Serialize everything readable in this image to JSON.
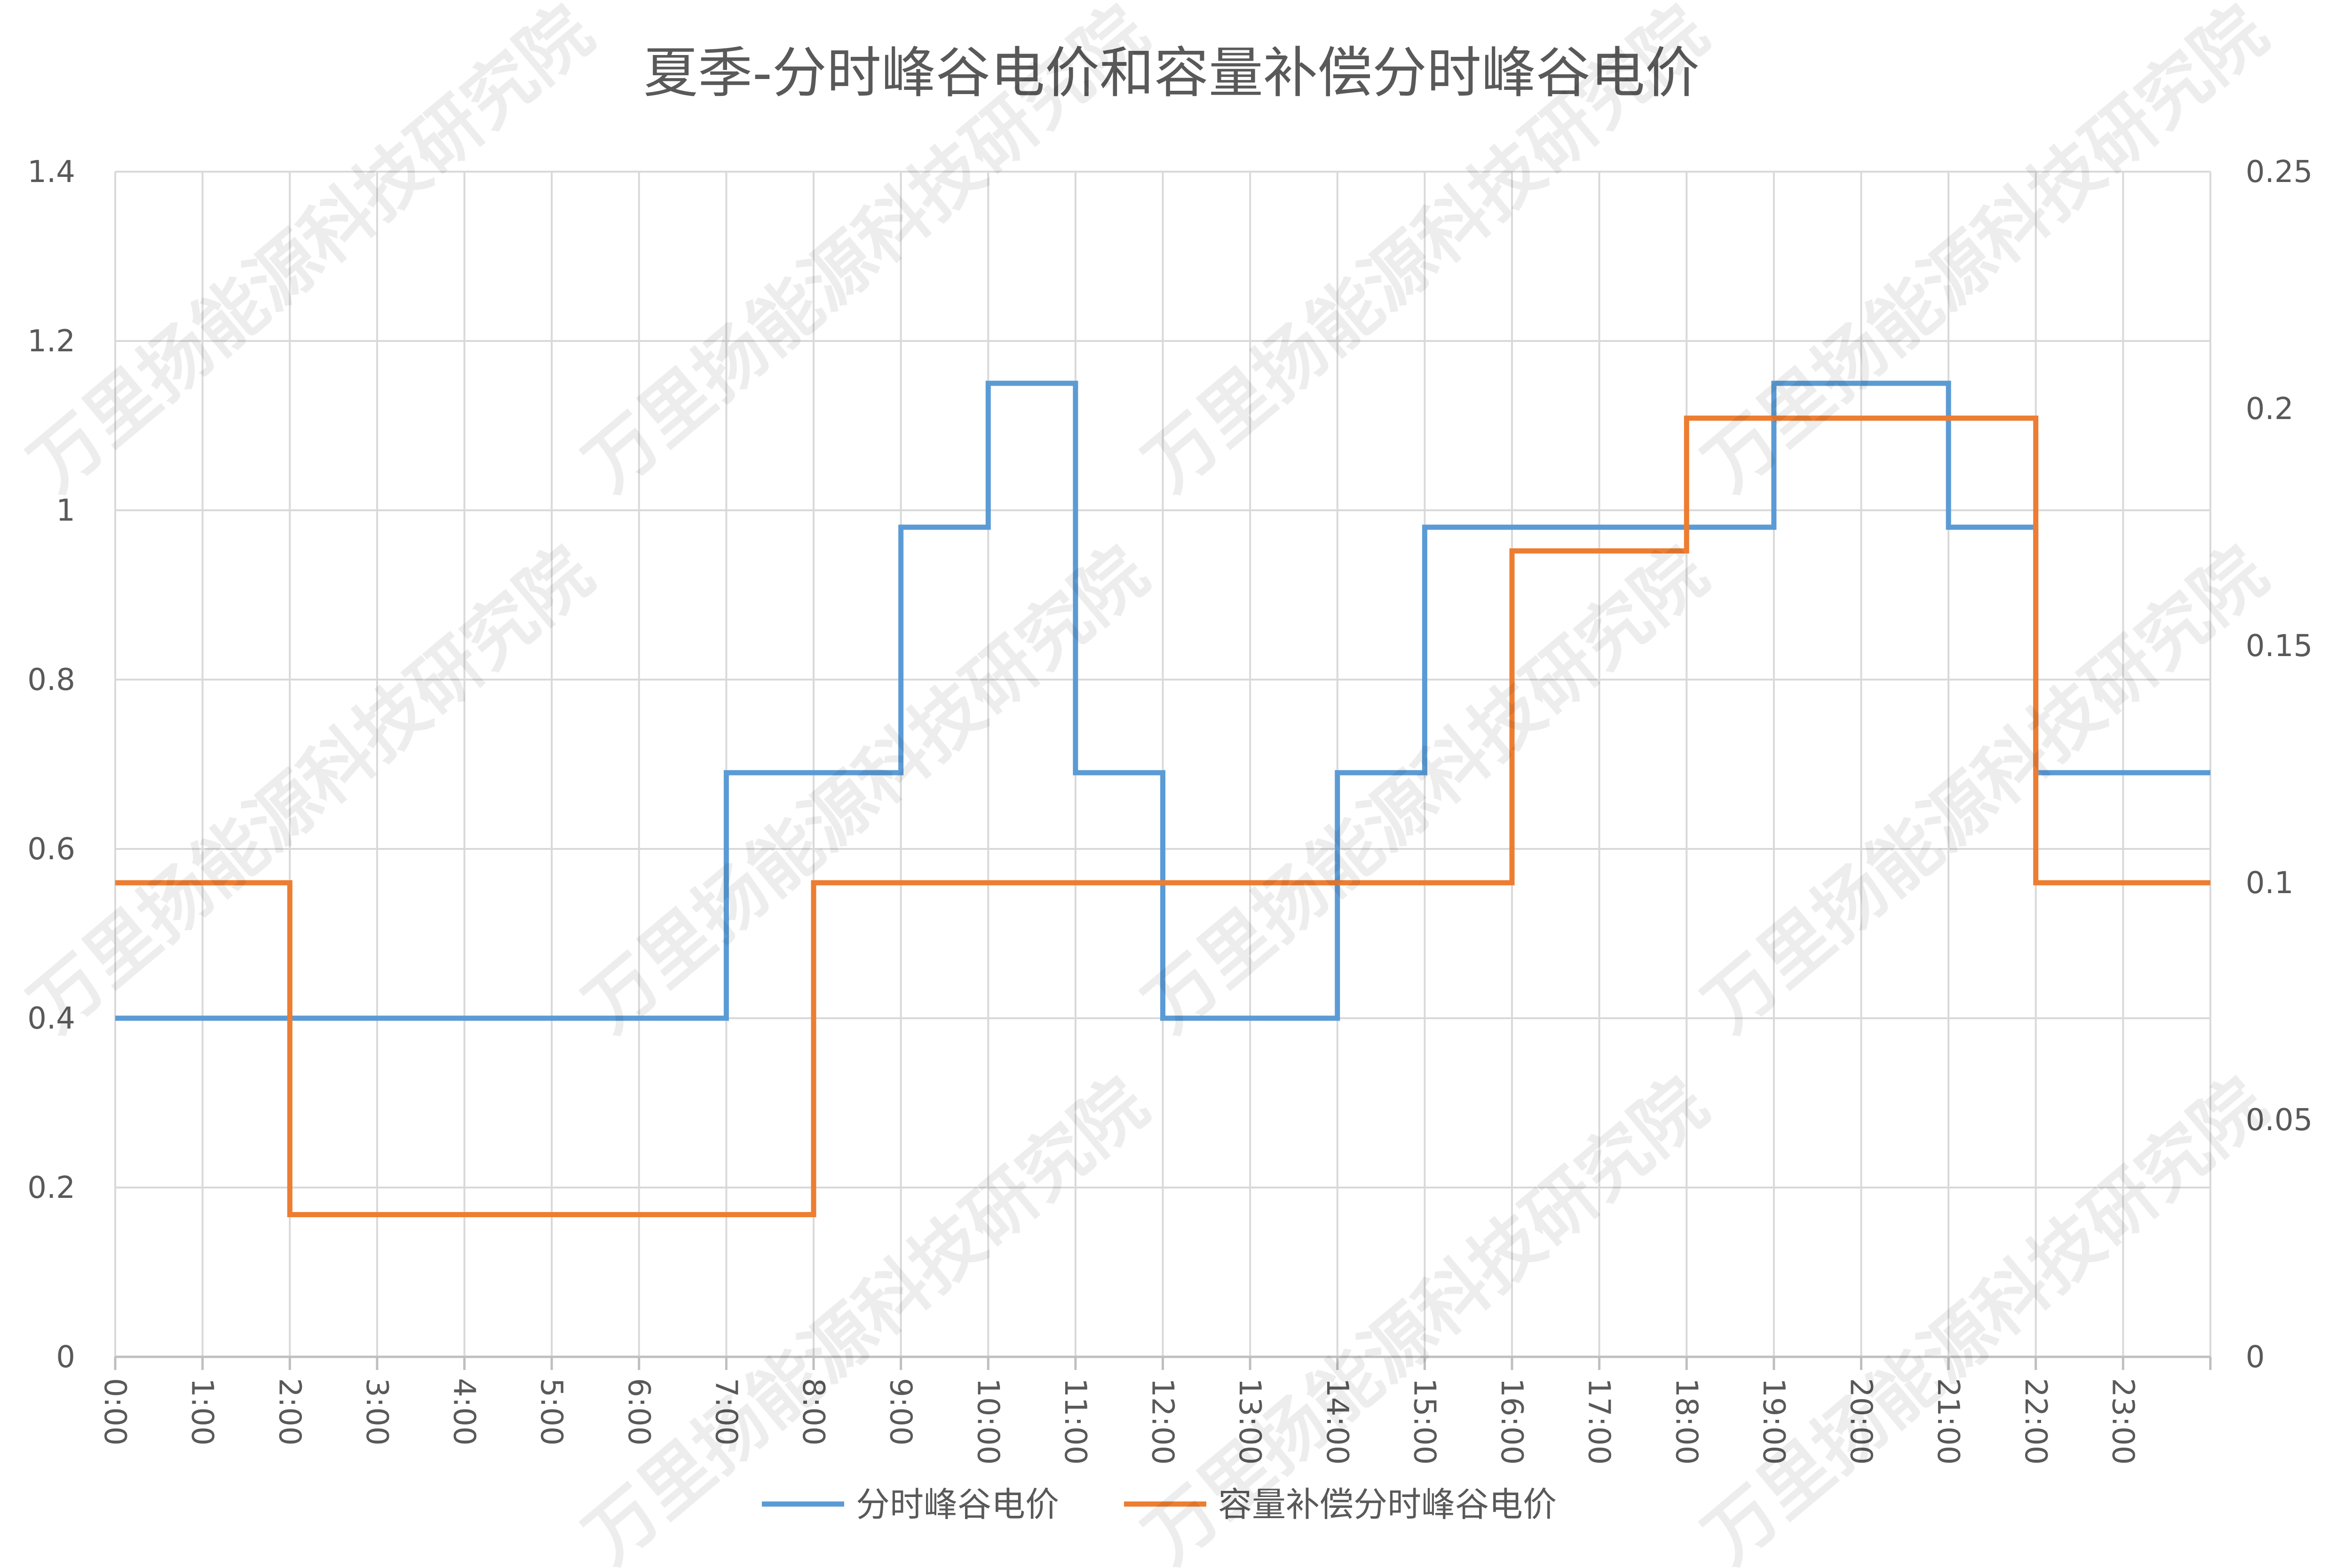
{
  "chart_data": {
    "type": "line",
    "step": true,
    "title": "夏季-分时峰谷电价和容量补偿分时峰谷电价",
    "xlabel": "",
    "ylabel": "",
    "x_ticks": [
      "0:00",
      "1:00",
      "2:00",
      "3:00",
      "4:00",
      "5:00",
      "6:00",
      "7:00",
      "8:00",
      "9:00",
      "10:00",
      "11:00",
      "12:00",
      "13:00",
      "14:00",
      "15:00",
      "16:00",
      "17:00",
      "18:00",
      "19:00",
      "20:00",
      "21:00",
      "22:00",
      "23:00"
    ],
    "y_left": {
      "min": 0,
      "max": 1.4,
      "ticks": [
        "0",
        "0.2",
        "0.4",
        "0.6",
        "0.8",
        "1",
        "1.2",
        "1.4"
      ]
    },
    "y_right": {
      "min": 0,
      "max": 0.25,
      "ticks": [
        "0",
        "0.05",
        "0.1",
        "0.15",
        "0.2",
        "0.25"
      ]
    },
    "grid": true,
    "legend_position": "bottom",
    "series": [
      {
        "name": "分时峰谷电价",
        "axis": "left",
        "color": "#5B9BD5",
        "values": [
          0.4,
          0.4,
          0.4,
          0.4,
          0.4,
          0.4,
          0.4,
          0.69,
          0.69,
          0.98,
          1.15,
          0.69,
          0.4,
          0.4,
          0.69,
          0.98,
          0.98,
          0.98,
          0.98,
          1.15,
          1.15,
          0.98,
          0.69,
          0.69
        ]
      },
      {
        "name": "容量补偿分时峰谷电价",
        "axis": "right",
        "color": "#ED7D31",
        "values": [
          0.1,
          0.1,
          0.03,
          0.03,
          0.03,
          0.03,
          0.03,
          0.03,
          0.1,
          0.1,
          0.1,
          0.1,
          0.1,
          0.1,
          0.1,
          0.1,
          0.17,
          0.17,
          0.198,
          0.198,
          0.198,
          0.198,
          0.1,
          0.1
        ]
      }
    ]
  },
  "watermark": "万里扬能源科技研究院"
}
